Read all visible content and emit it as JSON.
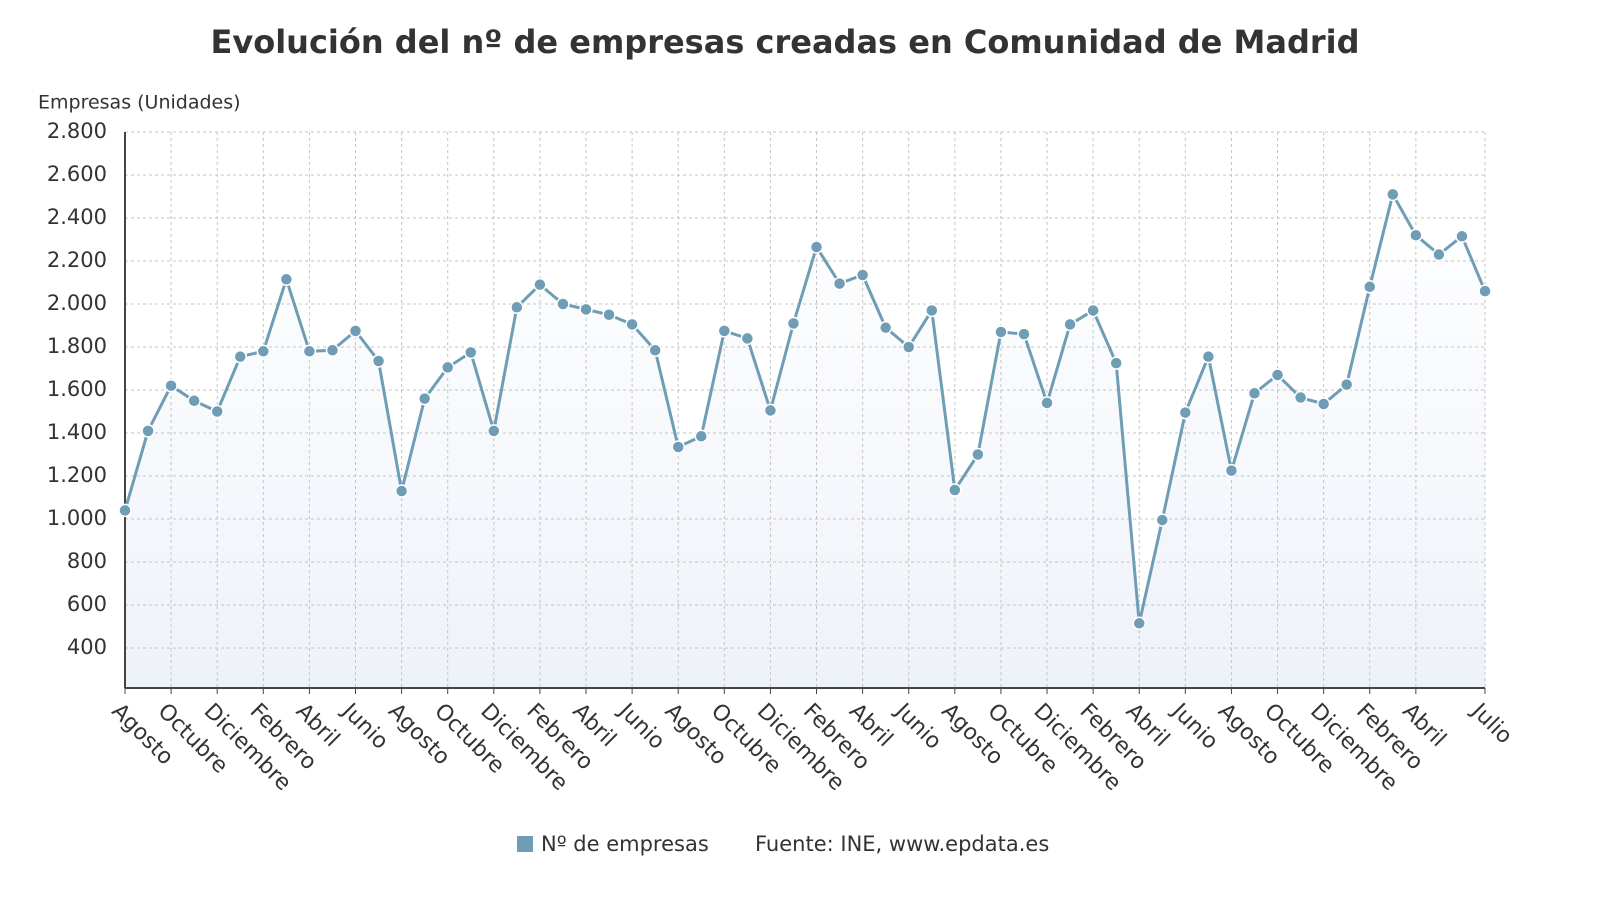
{
  "chart_data": {
    "type": "line",
    "title": "Evolución del nº de empresas creadas en Comunidad de Madrid",
    "y_label": "Empresas (Unidades)",
    "source": "Fuente: INE, www.epdata.es",
    "categories": [
      "Agosto",
      null,
      "Octubre",
      null,
      "Diciembre",
      null,
      "Febrero",
      null,
      "Abril",
      null,
      "Junio",
      null,
      "Agosto",
      null,
      "Octubre",
      null,
      "Diciembre",
      null,
      "Febrero",
      null,
      "Abril",
      null,
      "Junio",
      null,
      "Agosto",
      null,
      "Octubre",
      null,
      "Diciembre",
      null,
      "Febrero",
      null,
      "Abril",
      null,
      "Junio",
      null,
      "Agosto",
      null,
      "Octubre",
      null,
      "Diciembre",
      null,
      "Febrero",
      null,
      "Abril",
      null,
      "Junio",
      null,
      "Agosto",
      null,
      "Octubre",
      null,
      "Diciembre",
      null,
      "Febrero",
      null,
      "Abril",
      null,
      null,
      "Julio"
    ],
    "series": [
      {
        "name": "Nº de empresas",
        "color": "#6f9db5",
        "values": [
          1040,
          1410,
          1620,
          1550,
          1500,
          1755,
          1780,
          2115,
          1780,
          1785,
          1875,
          1735,
          1130,
          1560,
          1705,
          1775,
          1410,
          1985,
          2090,
          2000,
          1975,
          1950,
          1905,
          1785,
          1335,
          1385,
          1875,
          1840,
          1505,
          1910,
          2265,
          2095,
          2135,
          1890,
          1800,
          1970,
          1135,
          1300,
          1870,
          1860,
          1540,
          1905,
          1970,
          1725,
          515,
          995,
          1495,
          1755,
          1225,
          1585,
          1670,
          1565,
          1535,
          1625,
          2080,
          2510,
          2320,
          2230,
          2315,
          2060
        ]
      }
    ],
    "ylim": [
      214,
      2800
    ],
    "yticks": [
      {
        "value": 400,
        "label": "400"
      },
      {
        "value": 600,
        "label": "600"
      },
      {
        "value": 800,
        "label": "800"
      },
      {
        "value": 1000,
        "label": "1.000"
      },
      {
        "value": 1200,
        "label": "1.200"
      },
      {
        "value": 1400,
        "label": "1.400"
      },
      {
        "value": 1600,
        "label": "1.600"
      },
      {
        "value": 1800,
        "label": "1.800"
      },
      {
        "value": 2000,
        "label": "2.000"
      },
      {
        "value": 2200,
        "label": "2.200"
      },
      {
        "value": 2400,
        "label": "2.400"
      },
      {
        "value": 2600,
        "label": "2.600"
      },
      {
        "value": 2800,
        "label": "2.800"
      }
    ],
    "grid": true
  }
}
